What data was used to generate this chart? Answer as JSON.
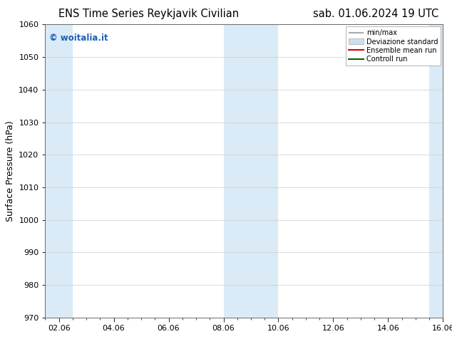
{
  "title_left": "ENS Time Series Reykjavik Civilian",
  "title_right": "sab. 01.06.2024 19 UTC",
  "ylabel": "Surface Pressure (hPa)",
  "ylim": [
    970,
    1060
  ],
  "yticks": [
    970,
    980,
    990,
    1000,
    1010,
    1020,
    1030,
    1040,
    1050,
    1060
  ],
  "xlim_start": 0.0,
  "xlim_end": 14.5,
  "xtick_labels": [
    "02.06",
    "04.06",
    "06.06",
    "08.06",
    "10.06",
    "12.06",
    "14.06",
    "16.06"
  ],
  "xtick_positions": [
    0.5,
    2.5,
    4.5,
    6.5,
    8.5,
    10.5,
    12.5,
    14.5
  ],
  "shaded_bands": [
    {
      "x_start": 0.0,
      "x_end": 1.0
    },
    {
      "x_start": 6.5,
      "x_end": 8.5
    },
    {
      "x_start": 14.0,
      "x_end": 14.5
    }
  ],
  "band_color": "#daeaf6",
  "watermark_text": "© woitalia.it",
  "watermark_color": "#1a5fb4",
  "legend_entries": [
    {
      "label": "min/max",
      "color": "#aaaaaa",
      "lw": 1.5
    },
    {
      "label": "Deviazione standard",
      "color": "#ccdff0",
      "lw": 8
    },
    {
      "label": "Ensemble mean run",
      "color": "#dd0000",
      "lw": 1.5
    },
    {
      "label": "Controll run",
      "color": "#006600",
      "lw": 1.5
    }
  ],
  "bg_color": "#ffffff",
  "grid_color": "#cccccc",
  "title_fontsize": 10.5,
  "tick_fontsize": 8,
  "ylabel_fontsize": 9
}
